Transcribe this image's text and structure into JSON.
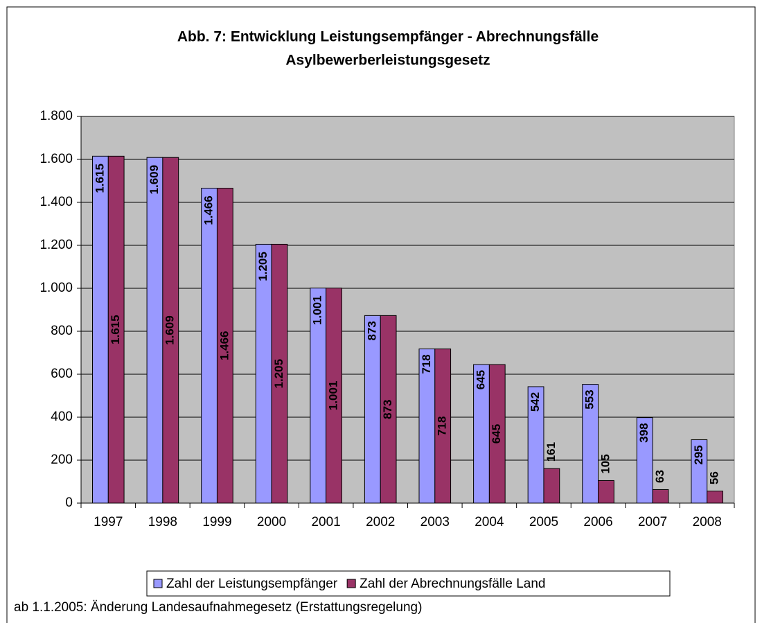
{
  "chart_data": {
    "type": "bar",
    "title": [
      "Abb. 7:  Entwicklung Leistungsempfänger - Abrechnungsfälle",
      "Asylbewerberleistungsgesetz"
    ],
    "categories": [
      "1997",
      "1998",
      "1999",
      "2000",
      "2001",
      "2002",
      "2003",
      "2004",
      "2005",
      "2006",
      "2007",
      "2008"
    ],
    "series": [
      {
        "name": "Zahl der Leistungsempfänger",
        "color": "#9999ff",
        "values": [
          1615,
          1609,
          1466,
          1205,
          1001,
          873,
          718,
          645,
          542,
          553,
          398,
          295
        ],
        "value_labels": [
          "1.615",
          "1.609",
          "1.466",
          "1.205",
          "1.001",
          "873",
          "718",
          "645",
          "542",
          "553",
          "398",
          "295"
        ]
      },
      {
        "name": "Zahl der Abrechnungsfälle Land",
        "color": "#993366",
        "values": [
          1615,
          1609,
          1466,
          1205,
          1001,
          873,
          718,
          645,
          161,
          105,
          63,
          56
        ],
        "value_labels": [
          "1.615",
          "1.609",
          "1.466",
          "1.205",
          "1.001",
          "873",
          "718",
          "645",
          "161",
          "105",
          "63",
          "56"
        ]
      }
    ],
    "ylim": [
      0,
      1800
    ],
    "yticks": [
      0,
      200,
      400,
      600,
      800,
      {
        "value": 1000,
        "label": "1.000"
      },
      {
        "value": 1200,
        "label": "1.200"
      },
      {
        "value": 1400,
        "label": "1.400"
      },
      {
        "value": 1600,
        "label": "1.600"
      },
      {
        "value": 1800,
        "label": "1.800"
      }
    ],
    "grid": true,
    "plot_background": "#c0c0c0",
    "legend": "bottom",
    "note": "ab 1.1.2005: Änderung Landesaufnahmegesetz (Erstattungsregelung)"
  }
}
